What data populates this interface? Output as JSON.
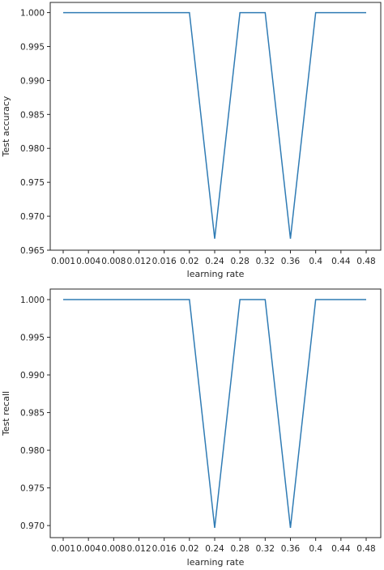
{
  "chart_data": [
    {
      "type": "line",
      "xlabel": "learning rate",
      "ylabel": "Test accuracy",
      "categories": [
        "0.001",
        "0.004",
        "0.008",
        "0.012",
        "0.016",
        "0.02",
        "0.24",
        "0.28",
        "0.32",
        "0.36",
        "0.4",
        "0.44",
        "0.48"
      ],
      "values": [
        1.0,
        1.0,
        1.0,
        1.0,
        1.0,
        1.0,
        0.9667,
        1.0,
        1.0,
        0.9667,
        1.0,
        1.0,
        1.0
      ],
      "ylim": [
        0.965,
        1.0015
      ],
      "yticks": [
        "0.965",
        "0.970",
        "0.975",
        "0.980",
        "0.985",
        "0.990",
        "0.995",
        "1.000"
      ],
      "color": "#2f7bb4",
      "grid": false
    },
    {
      "type": "line",
      "xlabel": "learning rate",
      "ylabel": "Test recall",
      "categories": [
        "0.001",
        "0.004",
        "0.008",
        "0.012",
        "0.016",
        "0.02",
        "0.24",
        "0.28",
        "0.32",
        "0.36",
        "0.4",
        "0.44",
        "0.48"
      ],
      "values": [
        1.0,
        1.0,
        1.0,
        1.0,
        1.0,
        1.0,
        0.9697,
        1.0,
        1.0,
        0.9697,
        1.0,
        1.0,
        1.0
      ],
      "ylim": [
        0.9684,
        1.0014
      ],
      "yticks": [
        "0.970",
        "0.975",
        "0.980",
        "0.985",
        "0.990",
        "0.995",
        "1.000"
      ],
      "color": "#2f7bb4",
      "grid": false
    }
  ]
}
